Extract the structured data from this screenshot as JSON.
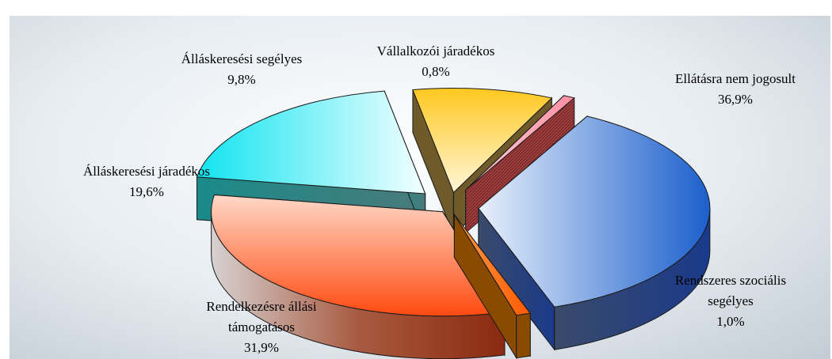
{
  "chart_data": {
    "type": "pie",
    "title": "",
    "slices": [
      {
        "label_lines": [
          "Ellátásra nem jogosult"
        ],
        "value_label": "36,9%",
        "value": 36.9,
        "color": "#2f6fd6"
      },
      {
        "label_lines": [
          "Rendszeres szociális",
          "segélyes"
        ],
        "value_label": "1,0%",
        "value": 1.0,
        "color": "#ff6a10"
      },
      {
        "label_lines": [
          "Rendelkezésre állási",
          "támogatásos"
        ],
        "value_label": "31,9%",
        "value": 31.9,
        "color": "#ff6a2a"
      },
      {
        "label_lines": [
          "Álláskeresési járadékos"
        ],
        "value_label": "19,6%",
        "value": 19.6,
        "color": "#22e8f0"
      },
      {
        "label_lines": [
          "Álláskeresési segélyes"
        ],
        "value_label": "9,8%",
        "value": 9.8,
        "color": "#ffd24a"
      },
      {
        "label_lines": [
          "Vállalkozói járadékos"
        ],
        "value_label": "0,8%",
        "value": 0.8,
        "color": "#ff9fb0"
      }
    ],
    "legend": "none"
  }
}
